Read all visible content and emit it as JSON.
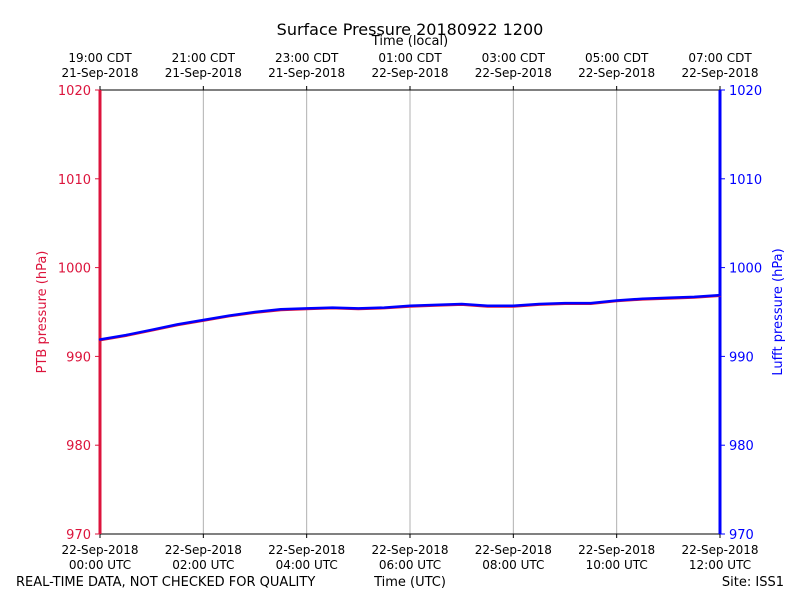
{
  "header": {
    "title": "Surface Pressure 20180922 1200",
    "top_axis_label": "Time (local)"
  },
  "footer": {
    "quality_note": "REAL-TIME DATA, NOT CHECKED FOR QUALITY",
    "bottom_axis_label": "Time (UTC)",
    "site": "Site: ISS1"
  },
  "chart_data": {
    "type": "line",
    "title": "Surface Pressure 20180922 1200",
    "xlabel": "Time (UTC)",
    "x2label": "Time (local)",
    "ylabel": "PTB pressure (hPa)",
    "y2label": "Lufft pressure (hPa)",
    "ylim": [
      970,
      1020
    ],
    "y2lim": [
      970,
      1020
    ],
    "yticks": [
      970,
      980,
      990,
      1000,
      1010,
      1020
    ],
    "xlim_hours_utc": [
      0,
      12
    ],
    "grid": "vertical",
    "left_axis_color": "#dc143c",
    "right_axis_color": "#0000ff",
    "xticks_bottom": [
      {
        "hour": 0,
        "date": "22-Sep-2018",
        "time": "00:00 UTC"
      },
      {
        "hour": 2,
        "date": "22-Sep-2018",
        "time": "02:00 UTC"
      },
      {
        "hour": 4,
        "date": "22-Sep-2018",
        "time": "04:00 UTC"
      },
      {
        "hour": 6,
        "date": "22-Sep-2018",
        "time": "06:00 UTC"
      },
      {
        "hour": 8,
        "date": "22-Sep-2018",
        "time": "08:00 UTC"
      },
      {
        "hour": 10,
        "date": "22-Sep-2018",
        "time": "10:00 UTC"
      },
      {
        "hour": 12,
        "date": "22-Sep-2018",
        "time": "12:00 UTC"
      }
    ],
    "xticks_top": [
      {
        "hour": 0,
        "time": "19:00 CDT",
        "date": "21-Sep-2018"
      },
      {
        "hour": 2,
        "time": "21:00 CDT",
        "date": "21-Sep-2018"
      },
      {
        "hour": 4,
        "time": "23:00 CDT",
        "date": "21-Sep-2018"
      },
      {
        "hour": 6,
        "time": "01:00 CDT",
        "date": "22-Sep-2018"
      },
      {
        "hour": 8,
        "time": "03:00 CDT",
        "date": "22-Sep-2018"
      },
      {
        "hour": 10,
        "time": "05:00 CDT",
        "date": "22-Sep-2018"
      },
      {
        "hour": 12,
        "time": "07:00 CDT",
        "date": "22-Sep-2018"
      }
    ],
    "series": [
      {
        "color": "#dc143c",
        "axis": "left",
        "x": [
          0,
          0.5,
          1,
          1.5,
          2,
          2.5,
          3,
          3.5,
          4,
          4.5,
          5,
          5.5,
          6,
          6.5,
          7,
          7.5,
          8,
          8.5,
          9,
          9.5,
          10,
          10.5,
          11,
          11.5,
          12
        ],
        "values": [
          991.8,
          992.3,
          992.9,
          993.5,
          994.0,
          994.5,
          994.9,
          995.2,
          995.3,
          995.4,
          995.3,
          995.4,
          995.6,
          995.7,
          995.8,
          995.6,
          995.6,
          995.8,
          995.9,
          995.9,
          996.2,
          996.4,
          996.5,
          996.6,
          996.8
        ]
      },
      {
        "color": "#0000ff",
        "axis": "right",
        "x": [
          0,
          0.5,
          1,
          1.5,
          2,
          2.5,
          3,
          3.5,
          4,
          4.5,
          5,
          5.5,
          6,
          6.5,
          7,
          7.5,
          8,
          8.5,
          9,
          9.5,
          10,
          10.5,
          11,
          11.5,
          12
        ],
        "values": [
          991.9,
          992.4,
          993.0,
          993.6,
          994.1,
          994.6,
          995.0,
          995.3,
          995.4,
          995.5,
          995.4,
          995.5,
          995.7,
          995.8,
          995.9,
          995.7,
          995.7,
          995.9,
          996.0,
          996.0,
          996.3,
          996.5,
          996.6,
          996.7,
          996.9
        ]
      }
    ]
  }
}
